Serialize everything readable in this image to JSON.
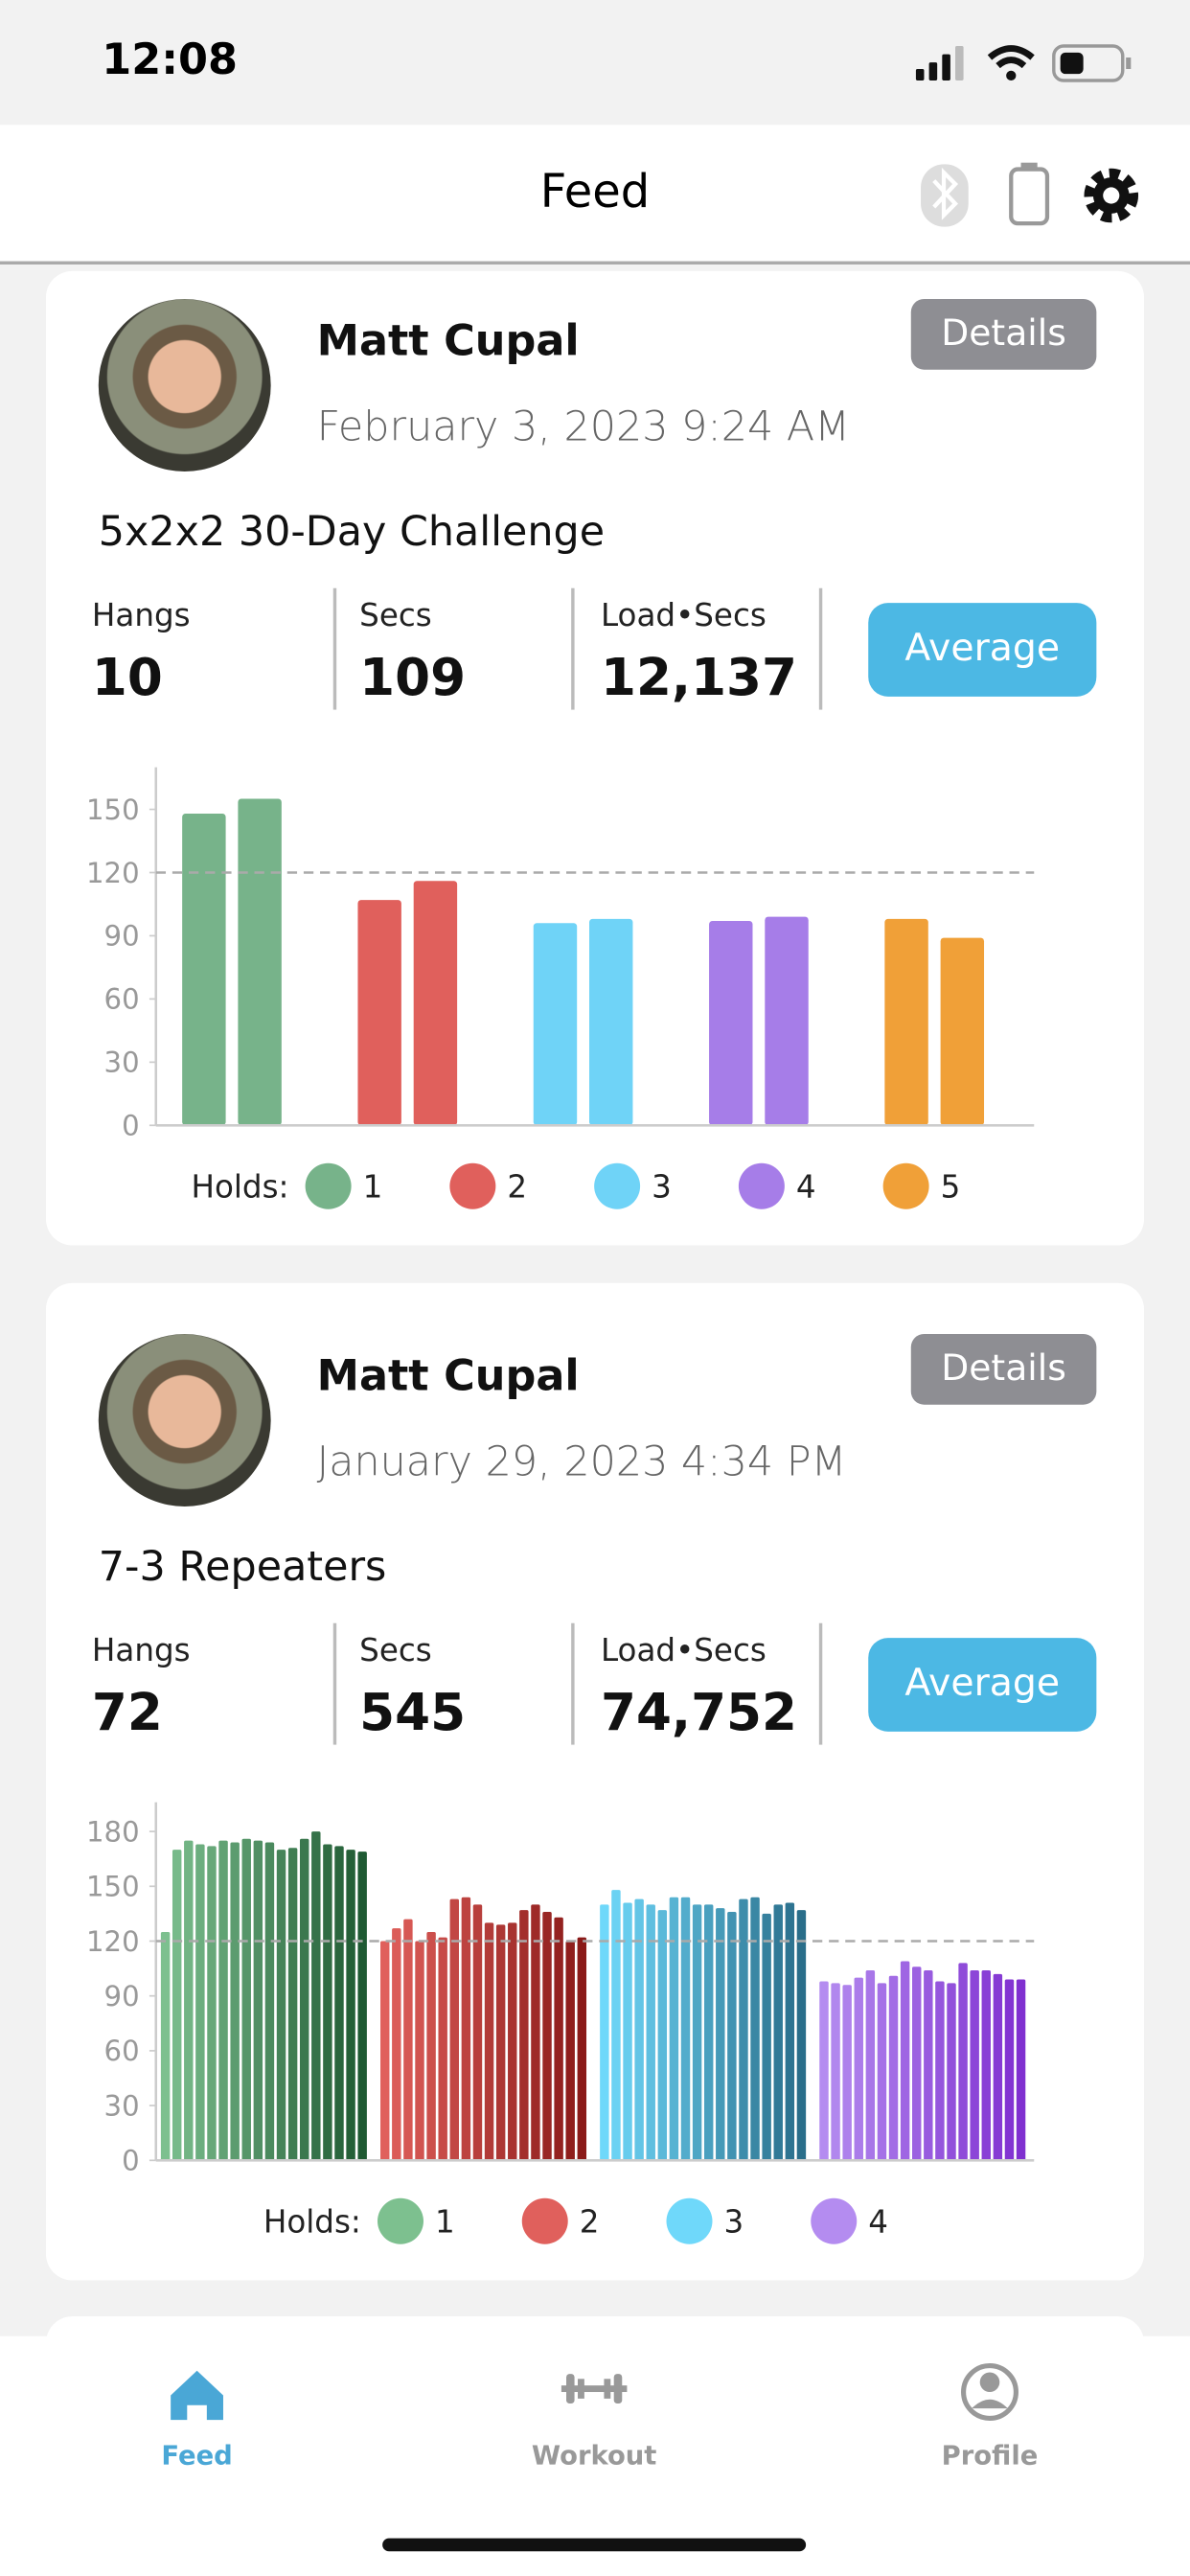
{
  "status_bar": {
    "time": "12:08"
  },
  "header": {
    "title": "Feed"
  },
  "posts": [
    {
      "name": "Matt Cupal",
      "date": "February 3, 2023 9:24 AM",
      "details_button": "Details",
      "workout": "5x2x2 30-Day Challenge",
      "stats": [
        {
          "label": "Hangs",
          "value": "10"
        },
        {
          "label": "Secs",
          "value": "109"
        },
        {
          "label": "Load•Secs",
          "value": "12,137"
        }
      ],
      "average_button": "Average"
    },
    {
      "name": "Matt Cupal",
      "date": "January 29, 2023 4:34 PM",
      "details_button": "Details",
      "workout": "7-3 Repeaters",
      "stats": [
        {
          "label": "Hangs",
          "value": "72"
        },
        {
          "label": "Secs",
          "value": "545"
        },
        {
          "label": "Load•Secs",
          "value": "74,752"
        }
      ],
      "average_button": "Average"
    }
  ],
  "chart_data": [
    {
      "type": "bar",
      "legend_title": "Holds:",
      "ylim": [
        0,
        170
      ],
      "yticks": [
        0,
        30,
        60,
        90,
        120,
        150
      ],
      "reference_line": 120,
      "series": [
        {
          "name": "1",
          "colors": [
            "#77b38a",
            "#77b38a"
          ],
          "values": [
            148,
            155
          ]
        },
        {
          "name": "2",
          "colors": [
            "#e0605c",
            "#e0605c"
          ],
          "values": [
            107,
            116
          ]
        },
        {
          "name": "3",
          "colors": [
            "#6fd3f7",
            "#6fd3f7"
          ],
          "values": [
            96,
            98
          ]
        },
        {
          "name": "4",
          "colors": [
            "#a67de8",
            "#a67de8"
          ],
          "values": [
            97,
            99
          ]
        },
        {
          "name": "5",
          "colors": [
            "#f0a038",
            "#f0a038"
          ],
          "values": [
            98,
            89
          ]
        }
      ]
    },
    {
      "type": "bar",
      "legend_title": "Holds:",
      "ylim": [
        0,
        196
      ],
      "yticks": [
        0,
        30,
        60,
        90,
        120,
        150,
        180
      ],
      "reference_line": 120,
      "series": [
        {
          "name": "1",
          "colors": [
            "#7dc08f",
            "#1f5a33"
          ],
          "values": [
            125,
            170,
            175,
            173,
            172,
            175,
            174,
            176,
            175,
            174,
            170,
            171,
            176,
            180,
            173,
            172,
            170,
            169
          ]
        },
        {
          "name": "2",
          "colors": [
            "#e0605c",
            "#8a1a18"
          ],
          "values": [
            120,
            127,
            132,
            120,
            125,
            122,
            143,
            144,
            140,
            130,
            129,
            130,
            137,
            140,
            136,
            133,
            120,
            122
          ]
        },
        {
          "name": "3",
          "colors": [
            "#6fd8fa",
            "#2a6e8a"
          ],
          "values": [
            140,
            148,
            141,
            143,
            140,
            137,
            144,
            144,
            140,
            140,
            138,
            136,
            143,
            144,
            135,
            140,
            141,
            137
          ]
        },
        {
          "name": "4",
          "colors": [
            "#b48cf0",
            "#8030d0"
          ],
          "values": [
            98,
            97,
            96,
            100,
            104,
            97,
            101,
            109,
            106,
            104,
            98,
            97,
            108,
            104,
            104,
            102,
            99,
            99
          ]
        }
      ]
    }
  ],
  "tab_bar": {
    "tabs": [
      "Feed",
      "Workout",
      "Profile"
    ]
  }
}
